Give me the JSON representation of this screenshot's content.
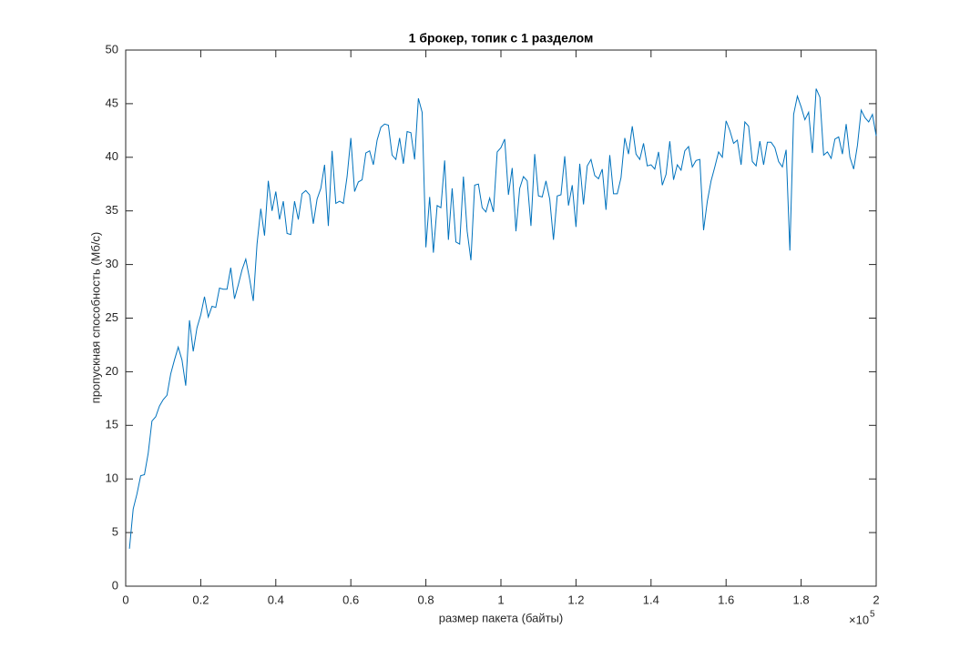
{
  "chart_data": {
    "type": "line",
    "title": "1 брокер, топик с 1 разделом",
    "x_label": "размер пакета (байты)",
    "y_label": "пропускная способность (Мб/с)",
    "x_multiplier": {
      "base": "×10",
      "exponent": "5"
    },
    "xlim": [
      0,
      2
    ],
    "xticks": [
      0,
      0.2,
      0.4,
      0.6,
      0.8,
      1,
      1.2,
      1.4,
      1.6,
      1.8,
      2
    ],
    "ylim": [
      0,
      50
    ],
    "yticks": [
      0,
      5,
      10,
      15,
      20,
      25,
      30,
      35,
      40,
      45,
      50
    ],
    "grid": false,
    "box": true,
    "x": [
      0.01,
      0.02,
      0.03,
      0.04,
      0.05,
      0.06,
      0.07,
      0.08,
      0.09,
      0.1,
      0.11,
      0.12,
      0.13,
      0.14,
      0.15,
      0.16,
      0.17,
      0.18,
      0.19,
      0.2,
      0.21,
      0.22,
      0.23,
      0.24,
      0.25,
      0.26,
      0.27,
      0.28,
      0.29,
      0.3,
      0.31,
      0.32,
      0.33,
      0.34,
      0.35,
      0.36,
      0.37,
      0.38,
      0.39,
      0.4,
      0.41,
      0.42,
      0.43,
      0.44,
      0.45,
      0.46,
      0.47,
      0.48,
      0.49,
      0.5,
      0.51,
      0.52,
      0.53,
      0.54,
      0.55,
      0.56,
      0.57,
      0.58,
      0.59,
      0.6,
      0.61,
      0.62,
      0.63,
      0.64,
      0.65,
      0.66,
      0.67,
      0.68,
      0.69,
      0.7,
      0.71,
      0.72,
      0.73,
      0.74,
      0.75,
      0.76,
      0.77,
      0.78,
      0.79,
      0.8,
      0.81,
      0.82,
      0.83,
      0.84,
      0.85,
      0.86,
      0.87,
      0.88,
      0.89,
      0.9,
      0.91,
      0.92,
      0.93,
      0.94,
      0.95,
      0.96,
      0.97,
      0.98,
      0.99,
      1,
      1.01,
      1.02,
      1.03,
      1.04,
      1.05,
      1.06,
      1.07,
      1.08,
      1.09,
      1.1,
      1.11,
      1.12,
      1.13,
      1.14,
      1.15,
      1.16,
      1.17,
      1.18,
      1.19,
      1.2,
      1.21,
      1.22,
      1.23,
      1.24,
      1.25,
      1.26,
      1.27,
      1.28,
      1.29,
      1.3,
      1.31,
      1.32,
      1.33,
      1.34,
      1.35,
      1.36,
      1.37,
      1.38,
      1.39,
      1.4,
      1.41,
      1.42,
      1.43,
      1.44,
      1.45,
      1.46,
      1.47,
      1.48,
      1.49,
      1.5,
      1.51,
      1.52,
      1.53,
      1.54,
      1.55,
      1.56,
      1.57,
      1.58,
      1.59,
      1.6,
      1.61,
      1.62,
      1.63,
      1.64,
      1.65,
      1.66,
      1.67,
      1.68,
      1.69,
      1.7,
      1.71,
      1.72,
      1.73,
      1.74,
      1.75,
      1.76,
      1.77,
      1.78,
      1.79,
      1.8,
      1.81,
      1.82,
      1.83,
      1.84,
      1.85,
      1.86,
      1.87,
      1.88,
      1.89,
      1.9,
      1.91,
      1.92,
      1.93,
      1.94,
      1.95,
      1.96,
      1.97,
      1.98,
      1.99,
      2
    ],
    "series": [
      {
        "color": "#0072bd",
        "values": [
          3.5,
          7.2,
          8.6,
          10.3,
          10.4,
          12.4,
          15.4,
          15.8,
          16.8,
          17.4,
          17.8,
          19.8,
          21.1,
          22.3,
          21.1,
          18.7,
          24.8,
          21.9,
          24.1,
          25.3,
          27.0,
          25.1,
          26.1,
          26.0,
          27.8,
          27.7,
          27.7,
          29.7,
          26.8,
          28.1,
          29.5,
          30.5,
          28.7,
          26.6,
          31.9,
          35.2,
          32.7,
          37.8,
          35.0,
          36.8,
          34.2,
          35.9,
          32.9,
          32.8,
          35.9,
          34.2,
          36.6,
          36.9,
          36.5,
          33.8,
          36.1,
          37.1,
          39.3,
          33.6,
          40.6,
          35.7,
          35.9,
          35.7,
          38.2,
          41.8,
          36.8,
          37.7,
          37.9,
          40.4,
          40.6,
          39.3,
          41.6,
          42.8,
          43.1,
          43.0,
          40.2,
          39.8,
          41.8,
          39.4,
          42.4,
          42.3,
          39.8,
          45.5,
          44.2,
          31.6,
          36.3,
          31.1,
          35.5,
          35.3,
          39.7,
          32.3,
          37.1,
          32.1,
          31.9,
          38.2,
          33.1,
          30.4,
          37.4,
          37.5,
          35.3,
          34.9,
          36.2,
          34.9,
          40.5,
          40.9,
          41.7,
          36.5,
          39.0,
          33.1,
          37.1,
          38.2,
          37.8,
          33.6,
          40.3,
          36.4,
          36.3,
          37.8,
          36.1,
          32.3,
          36.4,
          36.5,
          40.1,
          35.5,
          37.4,
          33.5,
          39.4,
          35.6,
          39.2,
          39.8,
          38.3,
          38.0,
          38.9,
          35.1,
          40.2,
          36.6,
          36.6,
          38.1,
          41.8,
          40.3,
          42.9,
          40.3,
          39.8,
          41.3,
          39.2,
          39.3,
          38.9,
          40.5,
          37.4,
          38.4,
          41.5,
          37.9,
          39.3,
          38.8,
          40.6,
          41.0,
          39.1,
          39.7,
          39.8,
          33.2,
          35.9,
          37.8,
          39.1,
          40.5,
          40.0,
          43.4,
          42.5,
          41.3,
          41.6,
          39.3,
          43.3,
          42.9,
          39.6,
          39.2,
          41.5,
          39.3,
          41.4,
          41.4,
          40.9,
          39.6,
          39.1,
          40.7,
          31.3,
          44.0,
          45.7,
          44.7,
          43.5,
          44.2,
          40.4,
          46.4,
          45.6,
          40.2,
          40.5,
          39.9,
          41.7,
          41.9,
          40.3,
          43.1,
          40.0,
          38.9,
          41.1,
          44.4,
          43.7,
          43.3,
          44.0,
          42.0
        ]
      }
    ]
  }
}
